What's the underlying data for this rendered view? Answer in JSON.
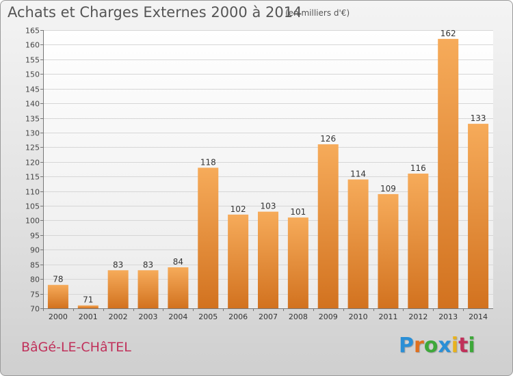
{
  "header": {
    "title": "Achats et Charges Externes 2000 à 2014",
    "subtitle": "(en milliers d'€)"
  },
  "footer": {
    "place": "BâGé-LE-CHâTEL",
    "logo_text": "Proxiti"
  },
  "colors": {
    "bar_light": "#f5a855",
    "bar_dark": "#d0701e",
    "place": "#c0305a"
  },
  "chart_data": {
    "type": "bar",
    "title": "Achats et Charges Externes 2000 à 2014",
    "subtitle": "(en milliers d'€)",
    "xlabel": "",
    "ylabel": "",
    "categories": [
      "2000",
      "2001",
      "2002",
      "2003",
      "2004",
      "2005",
      "2006",
      "2007",
      "2008",
      "2009",
      "2010",
      "2011",
      "2012",
      "2013",
      "2014"
    ],
    "values": [
      78,
      71,
      83,
      83,
      84,
      118,
      102,
      103,
      101,
      126,
      114,
      109,
      116,
      162,
      133
    ],
    "ylim": [
      70,
      165
    ],
    "yticks": [
      70,
      75,
      80,
      85,
      90,
      95,
      100,
      105,
      110,
      115,
      120,
      125,
      130,
      135,
      140,
      145,
      150,
      155,
      160,
      165
    ],
    "grid": true,
    "data_labels": true,
    "legend": "none"
  }
}
